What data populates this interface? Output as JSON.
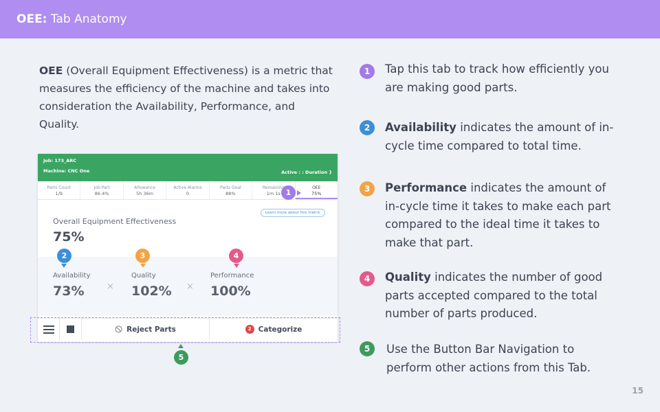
{
  "header": {
    "prefix": "OEE:",
    "title": "Tab Anatomy"
  },
  "intro": {
    "bold": "OEE",
    "text": " (Overall Equipment Effectiveness) is a metric that measures the efficiency of the machine and takes into consideration the Availability, Performance, and Quality."
  },
  "mockup": {
    "job": "Job: 173_ARC",
    "machine": "Machine: CNC One",
    "status": "Active : : Duration }",
    "tabs": [
      {
        "label": "Parts Count",
        "value": "1/9"
      },
      {
        "label": "Job Part",
        "value": "86.4%"
      },
      {
        "label": "Allowance",
        "value": "5h 36m"
      },
      {
        "label": "Active Alarms",
        "value": "0"
      },
      {
        "label": "Parts Goal",
        "value": "88%"
      },
      {
        "label": "Remaining",
        "value": "1m 1s"
      },
      {
        "label": "OEE",
        "value": "75%"
      }
    ],
    "learn_more": "Learn more about this metric",
    "oee_title": "Overall Equipment Effectiveness",
    "oee_value": "75%",
    "metrics": [
      {
        "label": "Availability",
        "value": "73%"
      },
      {
        "label": "Quality",
        "value": "102%"
      },
      {
        "label": "Performance",
        "value": "100%"
      }
    ],
    "times": "×",
    "buttons": {
      "reject": "Reject Parts",
      "categorize": "Categorize",
      "categorize_count": "2"
    }
  },
  "badges": {
    "b1": "1",
    "b2": "2",
    "b3": "3",
    "b4": "4",
    "b5": "5"
  },
  "points": [
    {
      "num": "1",
      "bold": "",
      "text": "Tap this tab to track how efficiently you are making good parts."
    },
    {
      "num": "2",
      "bold": "Availability",
      "text": " indicates the amount of in-cycle time compared to total time."
    },
    {
      "num": "3",
      "bold": "Performance",
      "text": " indicates the amount of in-cycle time it takes to make each part compared to the ideal time it takes to make that part."
    },
    {
      "num": "4",
      "bold": "Quality",
      "text": " indicates the number of good parts accepted compared to the total number of parts produced."
    },
    {
      "num": "5",
      "bold": "",
      "text": "Use the Button Bar Navigation to perform other actions from this Tab."
    }
  ],
  "colors": {
    "header": "#b08df0",
    "green": "#3aa563",
    "blue": "#3d8fd6",
    "orange": "#f1a447",
    "pink": "#e35a8c",
    "purple": "#a27be6"
  },
  "page_number": "15"
}
